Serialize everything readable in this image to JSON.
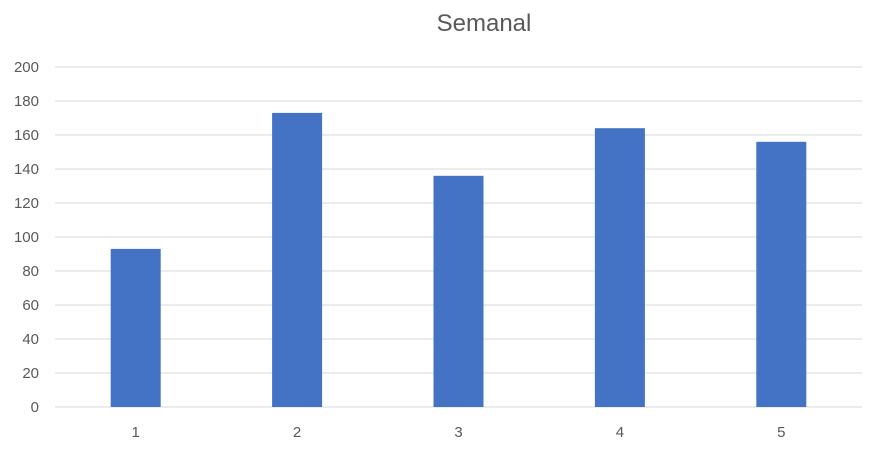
{
  "chart_data": {
    "type": "bar",
    "title": "Semanal",
    "xlabel": "",
    "ylabel": "",
    "categories": [
      "1",
      "2",
      "3",
      "4",
      "5"
    ],
    "values": [
      93,
      173,
      136,
      164,
      156
    ],
    "ylim": [
      0,
      200
    ],
    "yticks": [
      "0",
      "20",
      "40",
      "60",
      "80",
      "100",
      "120",
      "140",
      "160",
      "180",
      "200"
    ],
    "grid": true,
    "legend": "none",
    "colors": {
      "bar": "#4472c4",
      "grid": "#d9d9d9",
      "text": "#595959"
    }
  }
}
